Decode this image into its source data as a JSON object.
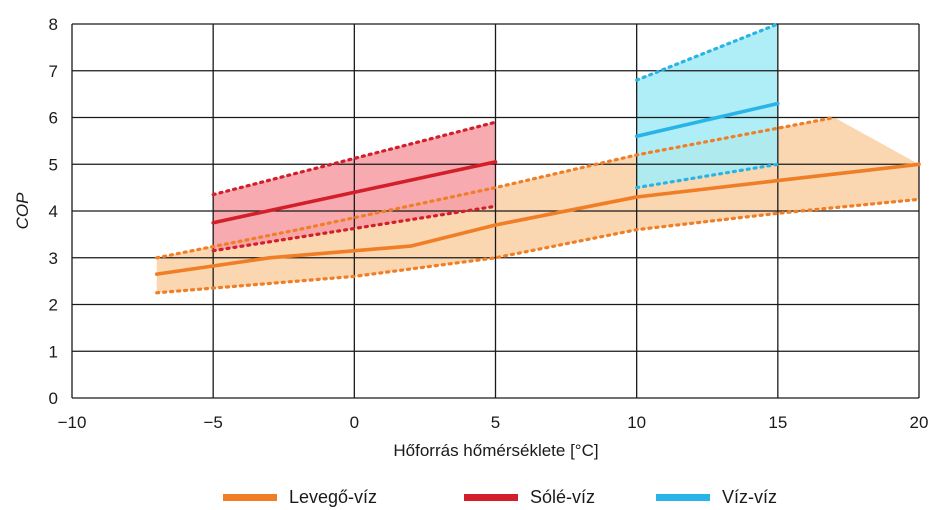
{
  "chart_data": {
    "type": "line",
    "xlabel": "Hőforrás hőmérséklete [°C]",
    "ylabel": "COP",
    "xlim": [
      -10,
      20
    ],
    "ylim": [
      0,
      8
    ],
    "xticks": [
      -10,
      -5,
      0,
      5,
      10,
      15,
      20
    ],
    "yticks": [
      0,
      1,
      2,
      3,
      4,
      5,
      6,
      7,
      8
    ],
    "xtick_labels": [
      "−10",
      "−5",
      "0",
      "5",
      "10",
      "15",
      "20"
    ],
    "ytick_labels": [
      "0",
      "1",
      "2",
      "3",
      "4",
      "5",
      "6",
      "7",
      "8"
    ],
    "grid": true,
    "legend_position": "bottom",
    "series": [
      {
        "name": "Levegő-víz",
        "color": "#f07e26",
        "band_color": "#fbd3a8",
        "line": {
          "x": [
            -7,
            -3,
            2,
            5,
            10,
            15,
            20
          ],
          "y": [
            2.65,
            3.0,
            3.25,
            3.7,
            4.3,
            4.65,
            5.0
          ]
        },
        "upper": {
          "x": [
            -7,
            -2,
            5,
            10,
            17
          ],
          "y": [
            3.0,
            3.6,
            4.5,
            5.2,
            6.0
          ]
        },
        "lower": {
          "x": [
            -7,
            0,
            5,
            10,
            15,
            20
          ],
          "y": [
            2.25,
            2.6,
            3.0,
            3.6,
            3.95,
            4.25
          ]
        },
        "band": {
          "x": [
            -7,
            5,
            10,
            17,
            20,
            20,
            15,
            10,
            5,
            0,
            -7
          ],
          "y": [
            3.0,
            4.5,
            5.2,
            6.0,
            5.0,
            4.25,
            3.95,
            3.6,
            3.0,
            2.6,
            2.25
          ]
        }
      },
      {
        "name": "Sólé-víz",
        "color": "#d21f2a",
        "band_color": "#f6a1a6",
        "line": {
          "x": [
            -5,
            5
          ],
          "y": [
            3.75,
            5.05
          ]
        },
        "upper": {
          "x": [
            -5,
            5
          ],
          "y": [
            4.35,
            5.9
          ]
        },
        "lower": {
          "x": [
            -5,
            5
          ],
          "y": [
            3.15,
            4.1
          ]
        },
        "band": {
          "x": [
            -5,
            5,
            5,
            -5
          ],
          "y": [
            4.35,
            5.9,
            4.1,
            3.15
          ]
        }
      },
      {
        "name": "Víz-víz",
        "color": "#28b4e6",
        "band_color": "#a6ecf5",
        "line": {
          "x": [
            10,
            15
          ],
          "y": [
            5.6,
            6.3
          ]
        },
        "upper": {
          "x": [
            10,
            15
          ],
          "y": [
            6.8,
            8.0
          ]
        },
        "lower": {
          "x": [
            10,
            15
          ],
          "y": [
            4.5,
            5.0
          ]
        },
        "band": {
          "x": [
            10,
            15,
            15,
            10
          ],
          "y": [
            6.8,
            8.0,
            5.0,
            4.5
          ]
        }
      }
    ]
  }
}
